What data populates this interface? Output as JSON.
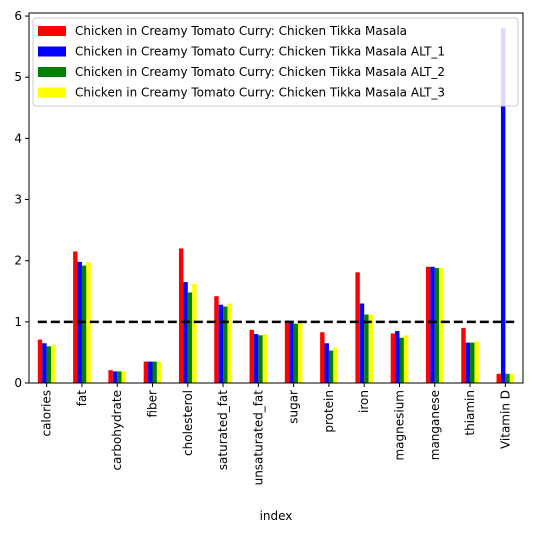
{
  "chart_data": {
    "type": "bar",
    "title": "",
    "xlabel": "index",
    "ylabel": "",
    "ylim": [
      0,
      6.05
    ],
    "yticks": [
      0,
      1,
      2,
      3,
      4,
      5,
      6
    ],
    "grid": false,
    "legend_position": "top-left",
    "categories": [
      "calories",
      "fat",
      "carbohydrate",
      "fiber",
      "cholesterol",
      "saturated_fat",
      "unsaturated_fat",
      "sugar",
      "protein",
      "iron",
      "magnesium",
      "manganese",
      "thiamin",
      "Vitamin D"
    ],
    "series": [
      {
        "name": "Chicken in Creamy Tomato Curry: Chicken Tikka Masala",
        "color": "#ff0000",
        "values": [
          0.71,
          2.15,
          0.21,
          0.35,
          2.2,
          1.42,
          0.87,
          1.02,
          0.83,
          1.81,
          0.81,
          1.9,
          0.9,
          0.15
        ]
      },
      {
        "name": "Chicken in Creamy Tomato Curry: Chicken Tikka Masala ALT_1",
        "color": "#0000ff",
        "values": [
          0.65,
          1.98,
          0.19,
          0.35,
          1.65,
          1.28,
          0.8,
          0.98,
          0.65,
          1.3,
          0.85,
          1.9,
          0.66,
          5.8
        ]
      },
      {
        "name": "Chicken in Creamy Tomato Curry: Chicken Tikka Masala ALT_2",
        "color": "#008000",
        "values": [
          0.6,
          1.92,
          0.19,
          0.35,
          1.48,
          1.25,
          0.78,
          0.97,
          0.53,
          1.12,
          0.74,
          1.88,
          0.66,
          0.15
        ]
      },
      {
        "name": "Chicken in Creamy Tomato Curry: Chicken Tikka Masala ALT_3",
        "color": "#ffff00",
        "values": [
          0.62,
          1.98,
          0.19,
          0.35,
          1.62,
          1.3,
          0.8,
          1.0,
          0.58,
          1.12,
          0.78,
          1.88,
          0.68,
          0.15
        ]
      }
    ],
    "reference_line": {
      "y": 1,
      "style": "dashed",
      "color": "#000000"
    }
  }
}
